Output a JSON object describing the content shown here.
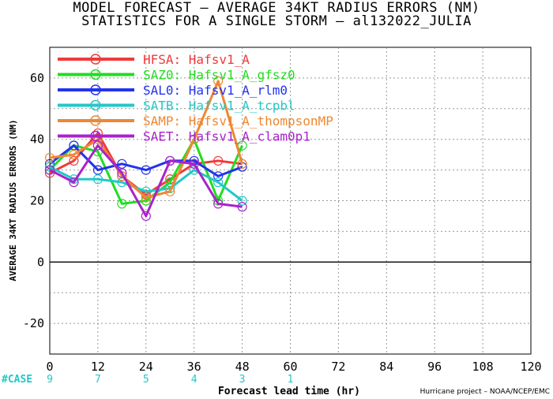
{
  "title_line1": "MODEL FORECAST – AVERAGE 34KT RADIUS ERRORS (NM)",
  "title_line2": "STATISTICS FOR A SINGLE STORM – al132022_JULIA",
  "footer": "Hurricane project – NOAA/NCEP/EMC",
  "chart_data": {
    "type": "line",
    "title": "MODEL FORECAST – AVERAGE 34KT RADIUS ERRORS (NM)",
    "subtitle": "STATISTICS FOR A SINGLE STORM – al132022_JULIA",
    "xlabel": "Forecast lead time (hr)",
    "ylabel": "AVERAGE 34KT RADIUS ERRORS (NM)",
    "xlim": [
      0,
      120
    ],
    "ylim": [
      -30,
      70
    ],
    "xticks": [
      0,
      12,
      24,
      36,
      48,
      60,
      72,
      84,
      96,
      108,
      120
    ],
    "yticks": [
      -20,
      0,
      20,
      40,
      60
    ],
    "grid": true,
    "legend_position": "top-left",
    "case_label": "#CASE",
    "cases": [
      {
        "x": 0,
        "n": "9"
      },
      {
        "x": 12,
        "n": "7"
      },
      {
        "x": 24,
        "n": "5"
      },
      {
        "x": 36,
        "n": "4"
      },
      {
        "x": 48,
        "n": "3"
      },
      {
        "x": 60,
        "n": "1"
      }
    ],
    "x": [
      0,
      6,
      12,
      18,
      24,
      30,
      36,
      42,
      48
    ],
    "series": [
      {
        "name": "HFSA: Hafsv1_A",
        "color": "#ee3b3b",
        "values": [
          29,
          33,
          42,
          28,
          22,
          27,
          32,
          33,
          32
        ]
      },
      {
        "name": "SAZ0: Hafsv1_A_gfsz0",
        "color": "#22dd22",
        "values": [
          30,
          38,
          36,
          19,
          20,
          26,
          40,
          20,
          38
        ]
      },
      {
        "name": "SAL0: Hafsv1_A_rlm0",
        "color": "#2233ee",
        "values": [
          32,
          38,
          30,
          32,
          30,
          33,
          33,
          28,
          31
        ]
      },
      {
        "name": "SATB: Hafsv1_A_tcpbl",
        "color": "#22c8c8",
        "values": [
          31,
          27,
          27,
          26,
          23,
          24,
          30,
          26,
          20
        ]
      },
      {
        "name": "SAMP: Hafsv1_A_thompsonMP",
        "color": "#ee8833",
        "values": [
          34,
          35,
          40,
          28,
          21,
          23,
          40,
          59,
          32
        ]
      },
      {
        "name": "SAET: Hafsv1_A_clam0p1",
        "color": "#aa22cc",
        "values": [
          30,
          26,
          38,
          29,
          15,
          33,
          32,
          19,
          18
        ]
      }
    ]
  }
}
